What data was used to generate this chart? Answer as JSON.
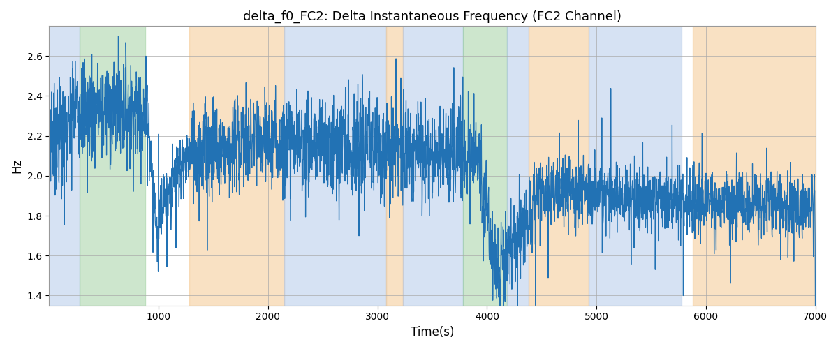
{
  "title": "delta_f0_FC2: Delta Instantaneous Frequency (FC2 Channel)",
  "xlabel": "Time(s)",
  "ylabel": "Hz",
  "xlim": [
    0,
    7000
  ],
  "ylim": [
    1.35,
    2.75
  ],
  "line_color": "#2272b4",
  "line_width": 0.9,
  "bg_color": "#ffffff",
  "grid_color": "#aaaaaa",
  "colored_bands": [
    {
      "xmin": 0,
      "xmax": 280,
      "color": "#aec6e8",
      "alpha": 0.5
    },
    {
      "xmin": 280,
      "xmax": 880,
      "color": "#90c990",
      "alpha": 0.45
    },
    {
      "xmin": 1280,
      "xmax": 2150,
      "color": "#f5c992",
      "alpha": 0.55
    },
    {
      "xmin": 2150,
      "xmax": 3080,
      "color": "#aec6e8",
      "alpha": 0.5
    },
    {
      "xmin": 3080,
      "xmax": 3230,
      "color": "#f5c992",
      "alpha": 0.55
    },
    {
      "xmin": 3230,
      "xmax": 3780,
      "color": "#aec6e8",
      "alpha": 0.5
    },
    {
      "xmin": 3780,
      "xmax": 4180,
      "color": "#90c990",
      "alpha": 0.45
    },
    {
      "xmin": 4180,
      "xmax": 4380,
      "color": "#aec6e8",
      "alpha": 0.5
    },
    {
      "xmin": 4380,
      "xmax": 4930,
      "color": "#f5c992",
      "alpha": 0.55
    },
    {
      "xmin": 4930,
      "xmax": 5780,
      "color": "#aec6e8",
      "alpha": 0.5
    },
    {
      "xmin": 5880,
      "xmax": 7000,
      "color": "#f5c992",
      "alpha": 0.55
    }
  ],
  "yticks": [
    1.4,
    1.6,
    1.8,
    2.0,
    2.2,
    2.4,
    2.6
  ],
  "xticks": [
    1000,
    2000,
    3000,
    4000,
    5000,
    6000,
    7000
  ]
}
